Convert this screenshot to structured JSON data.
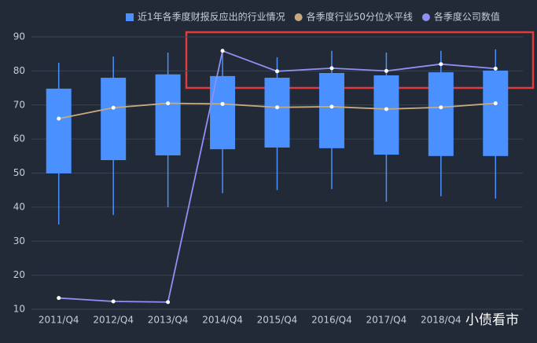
{
  "chart_data": {
    "type": "boxplot",
    "categories": [
      "2011/Q4",
      "2012/Q4",
      "2013/Q4",
      "2014/Q4",
      "2015/Q4",
      "2016/Q4",
      "2017/Q4",
      "2018/Q4",
      null
    ],
    "series": [
      {
        "name": "近1年各季度财报反应出的行业情况",
        "color": "#4a90ff",
        "type": "boxplot",
        "low": [
          34.9,
          37.7,
          40,
          44.1,
          45,
          45.3,
          41.6,
          43.2,
          42.5
        ],
        "q1": [
          49.9,
          53.8,
          55.2,
          57,
          57.5,
          57.3,
          55.4,
          55,
          55
        ],
        "q3": [
          74.8,
          78,
          79,
          78.5,
          78,
          79.4,
          78.7,
          79.6,
          80.1
        ],
        "high": [
          82.4,
          84.2,
          85.4,
          85.9,
          84,
          85.9,
          85.4,
          85.9,
          86.3
        ]
      },
      {
        "name": "各季度行业50分位水平线",
        "color": "#c8a97e",
        "type": "line",
        "values": [
          66,
          69.2,
          70.5,
          70.3,
          69.3,
          69.5,
          68.8,
          69.3,
          70.5
        ]
      },
      {
        "name": "各季度公司数值",
        "color": "#8f8ff5",
        "type": "line",
        "values": [
          13.3,
          12.3,
          12.1,
          85.9,
          79.9,
          80.8,
          80,
          82,
          80.7
        ]
      }
    ],
    "ylim": [
      10,
      90
    ],
    "yticks": [
      10,
      20,
      30,
      40,
      50,
      60,
      70,
      80,
      90
    ],
    "grid": true,
    "watermark": "小债看市"
  }
}
